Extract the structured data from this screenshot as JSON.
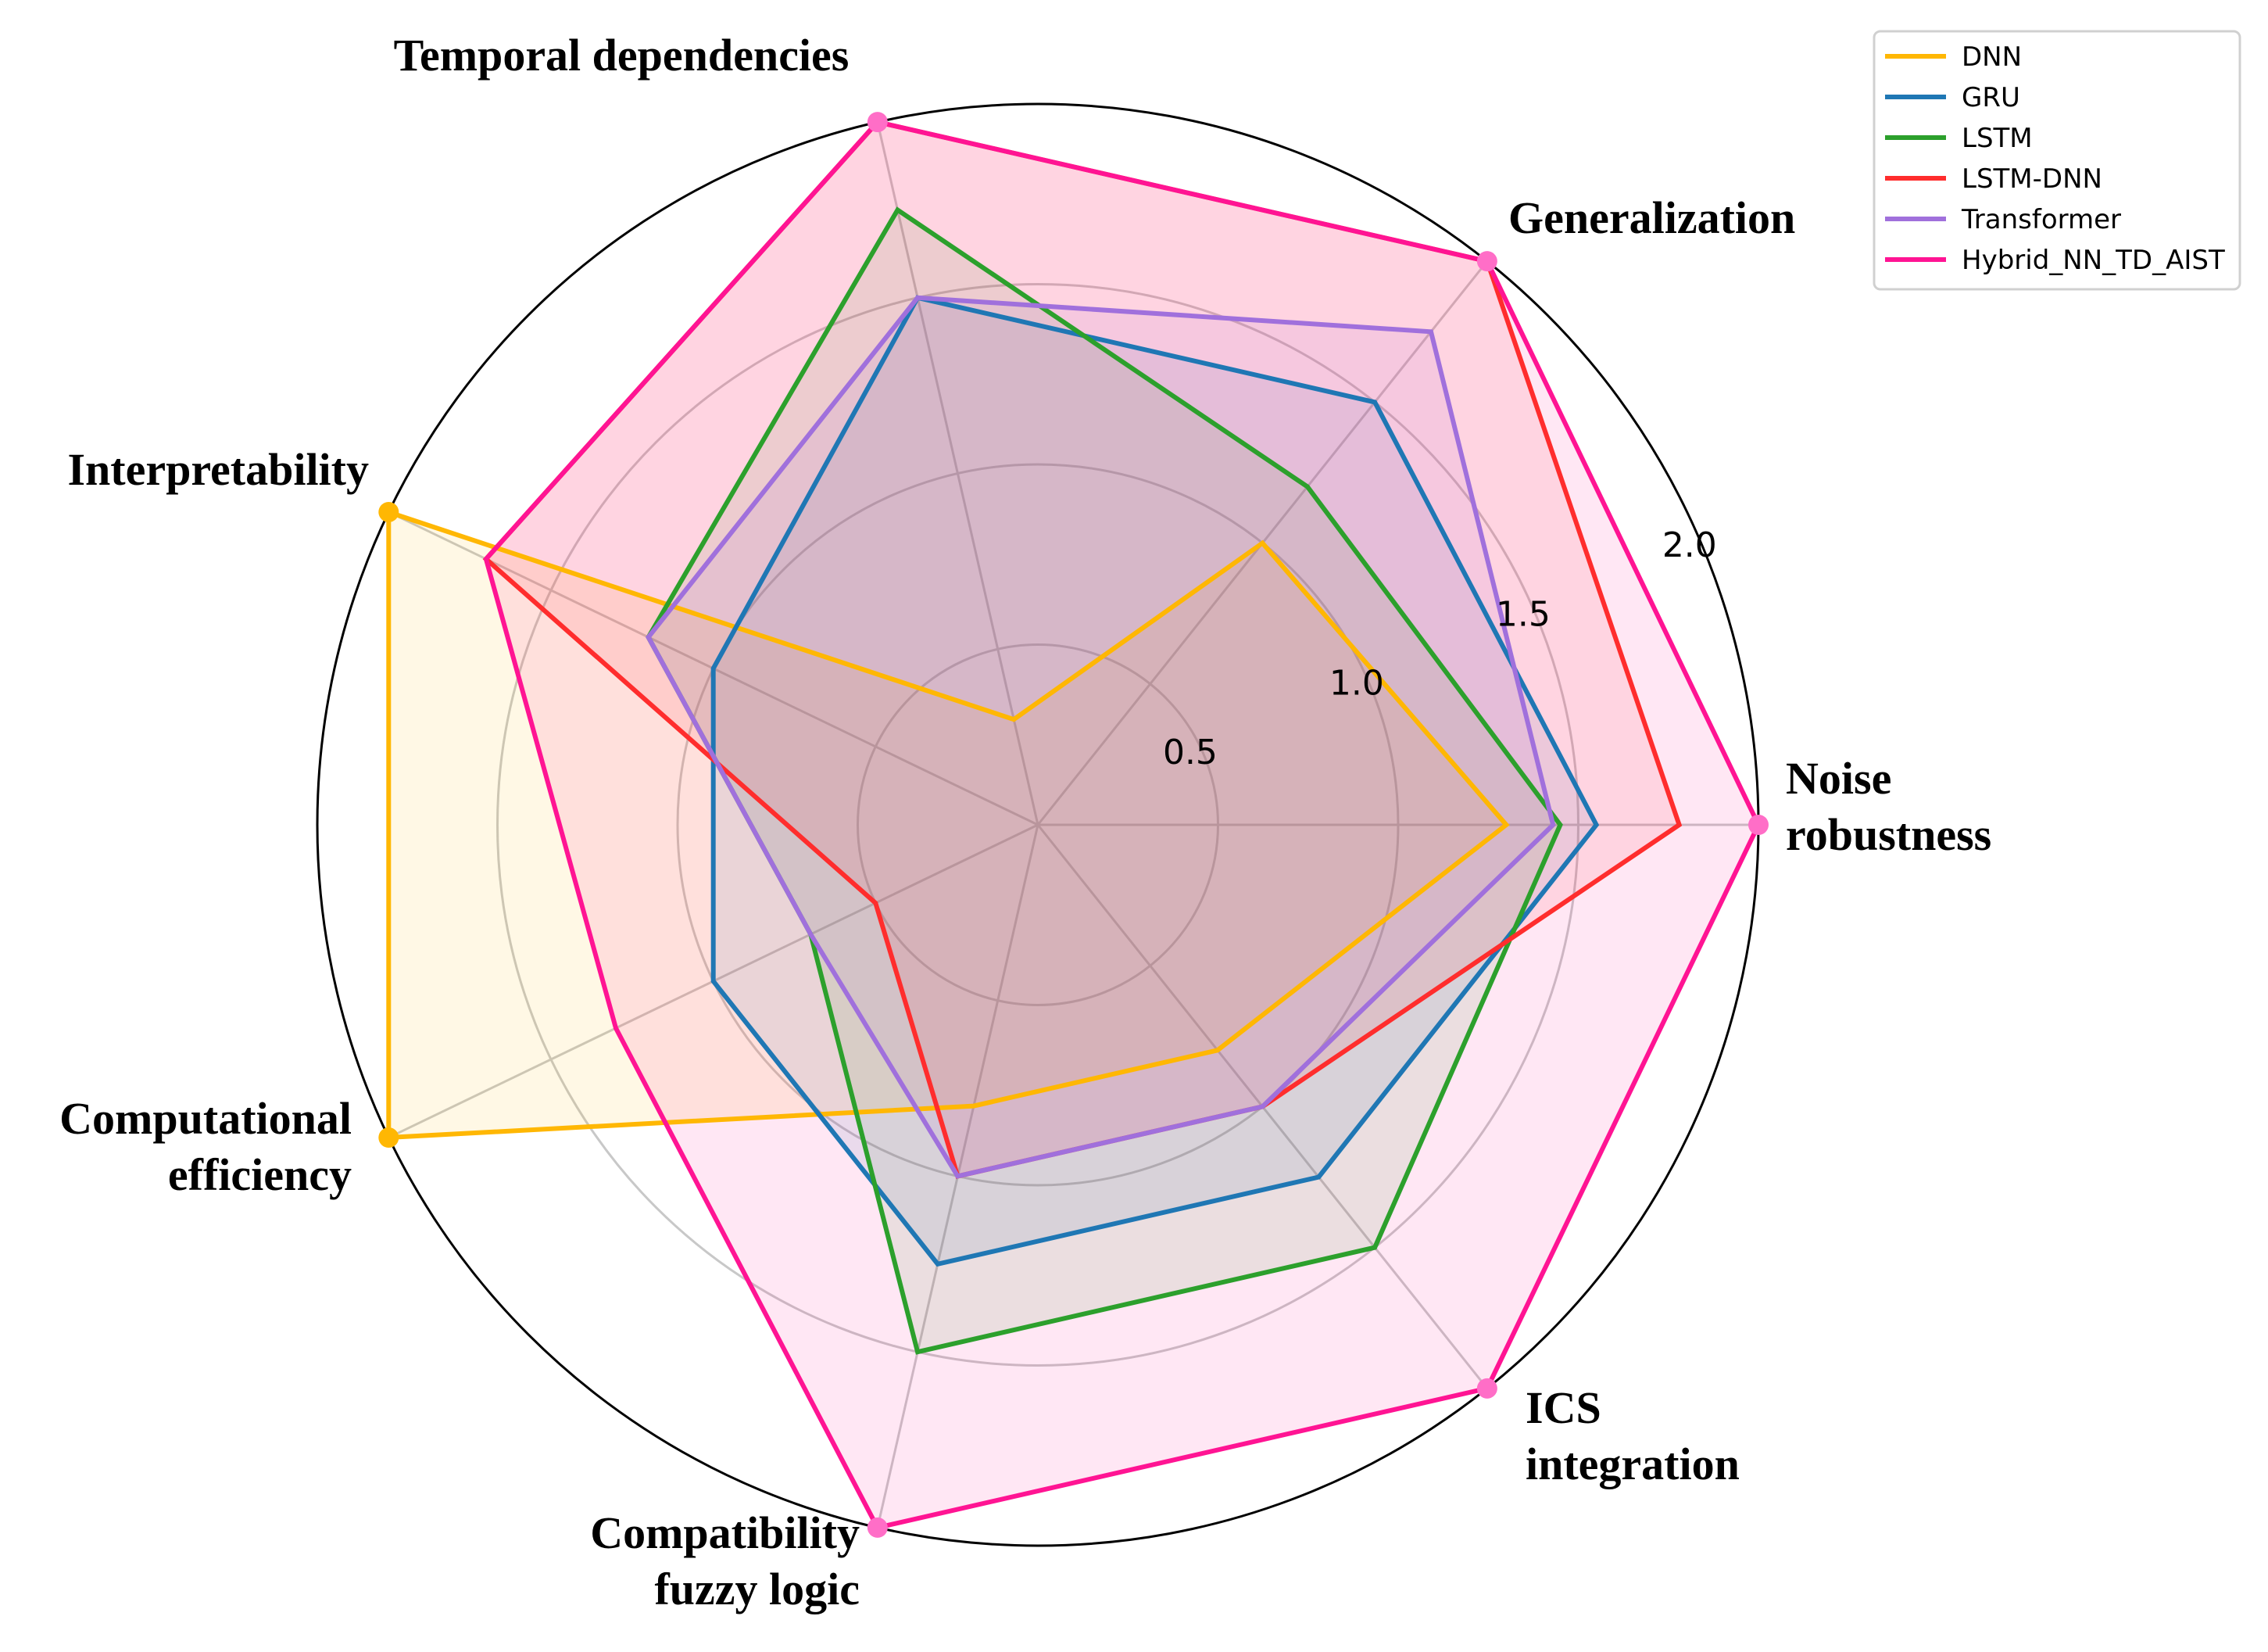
{
  "chart_data": {
    "type": "radar",
    "title": "",
    "axes": [
      "Noise robustness",
      "Generalization",
      "Temporal dependencies",
      "Interpretability",
      "Computational efficiency",
      "Compatibility fuzzy logic",
      "ICS integration"
    ],
    "rlim": [
      0,
      2.0
    ],
    "r_ticks": [
      {
        "value": 0.5,
        "label": "0.5"
      },
      {
        "value": 1.0,
        "label": "1.0"
      },
      {
        "value": 1.5,
        "label": "1.5"
      },
      {
        "value": 2.0,
        "label": "2.0"
      }
    ],
    "legend_position": "top-right",
    "series": [
      {
        "name": "DNN",
        "color": "#FFB703",
        "values": [
          1.3,
          1.0,
          0.3,
          2.0,
          2.0,
          0.8,
          0.8
        ],
        "markers": false
      },
      {
        "name": "GRU",
        "color": "#1F77B4",
        "values": [
          1.55,
          1.5,
          1.5,
          1.0,
          1.0,
          1.25,
          1.25
        ],
        "markers": false
      },
      {
        "name": "LSTM",
        "color": "#2CA02C",
        "values": [
          1.45,
          1.2,
          1.75,
          1.2,
          0.7,
          1.5,
          1.5
        ],
        "markers": false
      },
      {
        "name": "LSTM-DNN",
        "color": "#FF2D2D",
        "values": [
          1.78,
          2.0,
          2.0,
          1.7,
          0.5,
          1.0,
          1.0
        ],
        "markers": false
      },
      {
        "name": "Transformer",
        "color": "#A070DC",
        "values": [
          1.43,
          1.75,
          1.5,
          1.2,
          0.7,
          1.0,
          1.0
        ],
        "markers": false
      },
      {
        "name": "Hybrid_NN_TD_AIST",
        "color": "#FF1493",
        "values": [
          2.0,
          2.0,
          2.0,
          1.7,
          1.3,
          2.0,
          2.0
        ],
        "markers": true
      }
    ]
  }
}
